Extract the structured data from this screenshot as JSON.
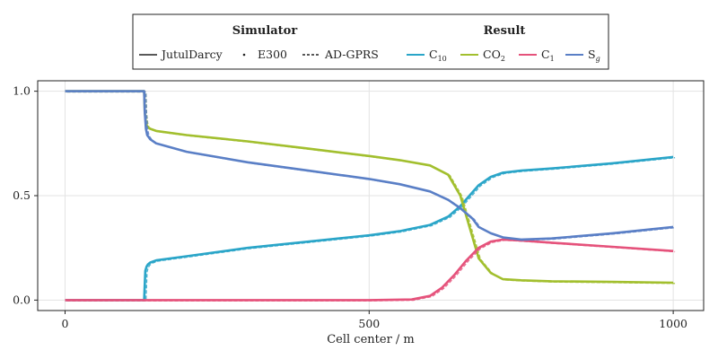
{
  "chart_data": {
    "type": "line",
    "title": "",
    "xlabel": "Cell center / m",
    "ylabel": "",
    "xlim": [
      -45,
      1050
    ],
    "ylim": [
      -0.05,
      1.05
    ],
    "xticks": [
      "0",
      "500",
      "1000"
    ],
    "yticks": [
      "0.0",
      "0.5",
      "1.0"
    ],
    "grid": true,
    "legend": {
      "placement": "top-center",
      "groups": [
        {
          "title": "Simulator",
          "entries": [
            "JutulDarcy",
            "E300",
            "AD-GPRS"
          ],
          "styles": [
            "solid",
            "dotted",
            "dashed"
          ]
        },
        {
          "title": "Result",
          "entries": [
            "C10",
            "CO2",
            "C1",
            "Sg"
          ]
        }
      ]
    },
    "series": [
      {
        "name": "C10",
        "color": "#2aa5c8",
        "x": [
          0,
          130,
          132,
          134,
          136,
          140,
          150,
          200,
          300,
          400,
          500,
          550,
          600,
          630,
          650,
          680,
          700,
          720,
          750,
          800,
          900,
          1000
        ],
        "y": [
          0,
          0,
          0.14,
          0.16,
          0.17,
          0.18,
          0.19,
          0.21,
          0.25,
          0.28,
          0.31,
          0.33,
          0.36,
          0.4,
          0.45,
          0.55,
          0.59,
          0.61,
          0.62,
          0.63,
          0.655,
          0.685
        ]
      },
      {
        "name": "CO2",
        "color": "#a2bf2e",
        "x": [
          0,
          130,
          131,
          133,
          135,
          140,
          150,
          200,
          300,
          400,
          500,
          550,
          600,
          630,
          650,
          670,
          680,
          700,
          720,
          750,
          800,
          900,
          1000
        ],
        "y": [
          1,
          1,
          0.9,
          0.85,
          0.83,
          0.82,
          0.81,
          0.79,
          0.76,
          0.725,
          0.69,
          0.67,
          0.645,
          0.6,
          0.5,
          0.3,
          0.2,
          0.13,
          0.1,
          0.095,
          0.09,
          0.087,
          0.083
        ]
      },
      {
        "name": "C1",
        "color": "#e5527b",
        "x": [
          0,
          100,
          200,
          300,
          400,
          500,
          570,
          600,
          620,
          640,
          660,
          680,
          700,
          720,
          750,
          800,
          900,
          1000
        ],
        "y": [
          0,
          0,
          0,
          0,
          0,
          0,
          0.003,
          0.02,
          0.06,
          0.12,
          0.19,
          0.25,
          0.28,
          0.29,
          0.285,
          0.275,
          0.255,
          0.235
        ]
      },
      {
        "name": "Sg",
        "color": "#5a7fc6",
        "x": [
          0,
          130,
          131,
          133,
          135,
          140,
          150,
          200,
          300,
          400,
          500,
          550,
          600,
          630,
          650,
          670,
          680,
          700,
          720,
          750,
          800,
          900,
          1000
        ],
        "y": [
          1,
          1,
          0.9,
          0.82,
          0.79,
          0.77,
          0.75,
          0.71,
          0.66,
          0.62,
          0.58,
          0.555,
          0.52,
          0.48,
          0.44,
          0.39,
          0.35,
          0.32,
          0.3,
          0.29,
          0.295,
          0.32,
          0.35
        ]
      }
    ]
  }
}
